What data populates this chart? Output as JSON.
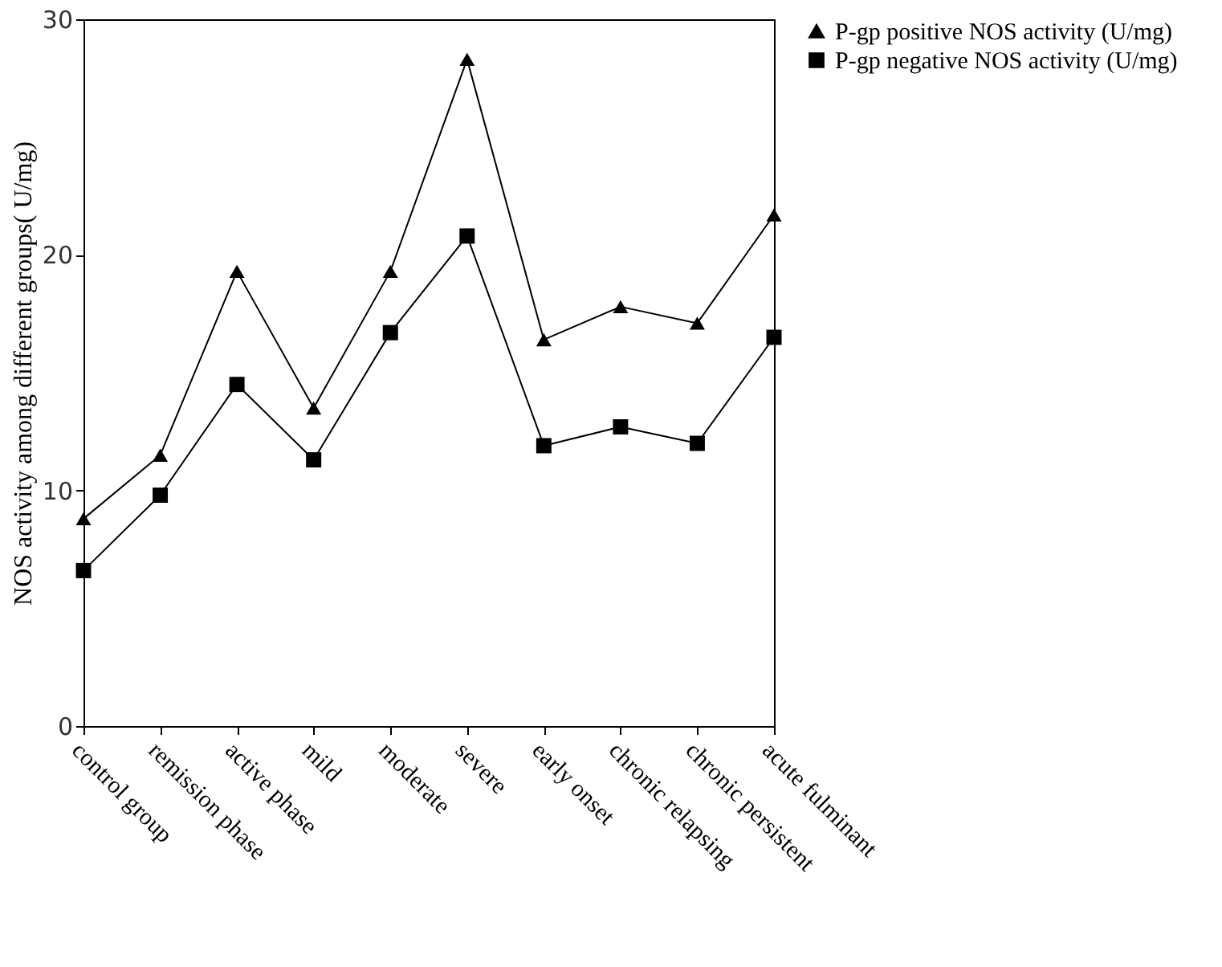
{
  "chart_data": {
    "type": "line",
    "ylabel": "NOS activity among different groups( U/mg)",
    "categories": [
      "control group",
      "remission phase",
      "active phase",
      "mild",
      "moderate",
      "severe",
      "early onset",
      "chronic relapsing",
      "chronic persistent",
      "acute fulminant"
    ],
    "series": [
      {
        "name": "P-gp positive NOS activity (U/mg)",
        "color": "#000000",
        "marker": "triangle",
        "values": [
          8.8,
          11.5,
          19.3,
          13.5,
          19.3,
          28.3,
          16.4,
          17.8,
          17.1,
          21.7
        ]
      },
      {
        "name": "P-gp negative NOS activity (U/mg)",
        "color": "#000000",
        "marker": "square",
        "values": [
          6.6,
          9.8,
          14.5,
          11.3,
          16.7,
          20.8,
          11.9,
          12.7,
          12.0,
          16.5
        ]
      }
    ],
    "ylim": [
      0,
      30
    ],
    "yticks": [
      0,
      10,
      20,
      30
    ],
    "grid": false,
    "legend": "right",
    "line_style": "solid"
  }
}
